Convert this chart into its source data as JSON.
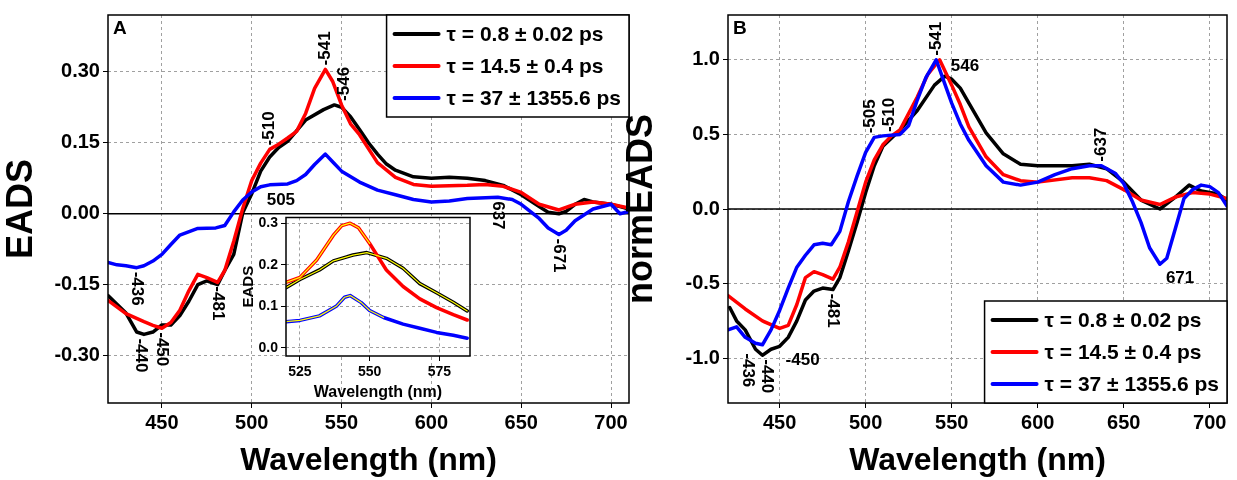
{
  "chart_data": [
    {
      "type": "line",
      "title": "A",
      "xlabel": "Wavelength (nm)",
      "ylabel": "EADS",
      "xlim": [
        420,
        710
      ],
      "xticks": [
        450,
        500,
        550,
        600,
        650,
        700
      ],
      "ylim": [
        -0.4,
        0.42
      ],
      "yticks": [
        {
          "value": 0.3,
          "label": "0.30"
        },
        0.15,
        {
          "value": 0,
          "label": "0.00"
        },
        -0.15,
        {
          "value": -0.3,
          "label": "-0.30"
        }
      ],
      "grid": true,
      "legend": "top right",
      "ref_lines": [
        {
          "axis": "y",
          "value": 0,
          "color": "#000000"
        }
      ],
      "series": [
        {
          "name": "τ = 0.8 ± 0.02 ps",
          "color": "#000000",
          "x": [
            420,
            430,
            436,
            440,
            445,
            450,
            455,
            460,
            465,
            470,
            475,
            481,
            485,
            490,
            495,
            500,
            505,
            510,
            515,
            520,
            530,
            540,
            546,
            550,
            555,
            560,
            565,
            570,
            575,
            580,
            590,
            600,
            610,
            620,
            630,
            640,
            650,
            660,
            665,
            671,
            675,
            680,
            685,
            690,
            700,
            705,
            710
          ],
          "values": [
            -0.173,
            -0.21,
            -0.25,
            -0.255,
            -0.25,
            -0.235,
            -0.235,
            -0.215,
            -0.185,
            -0.15,
            -0.142,
            -0.15,
            -0.12,
            -0.086,
            0.002,
            0.042,
            0.09,
            0.12,
            0.14,
            0.153,
            0.198,
            0.22,
            0.23,
            0.225,
            0.205,
            0.178,
            0.15,
            0.126,
            0.105,
            0.092,
            0.078,
            0.075,
            0.077,
            0.075,
            0.07,
            0.06,
            0.04,
            0.015,
            0.003,
            0.0,
            0.005,
            0.02,
            0.03,
            0.025,
            0.02,
            0.015,
            0.01
          ]
        },
        {
          "name": "τ = 14.5 ± 0.4 ps",
          "color": "#ff0000",
          "x": [
            420,
            430,
            440,
            445,
            450,
            455,
            460,
            465,
            470,
            475,
            481,
            485,
            490,
            495,
            500,
            505,
            510,
            515,
            520,
            525,
            530,
            535,
            541,
            545,
            550,
            555,
            560,
            570,
            580,
            590,
            600,
            620,
            630,
            640,
            650,
            660,
            671,
            680,
            690,
            700,
            710
          ],
          "values": [
            -0.183,
            -0.211,
            -0.228,
            -0.236,
            -0.242,
            -0.23,
            -0.204,
            -0.163,
            -0.128,
            -0.135,
            -0.145,
            -0.12,
            -0.058,
            0.011,
            0.07,
            0.107,
            0.136,
            0.147,
            0.16,
            0.174,
            0.212,
            0.265,
            0.305,
            0.28,
            0.23,
            0.19,
            0.167,
            0.108,
            0.077,
            0.062,
            0.058,
            0.06,
            0.062,
            0.058,
            0.045,
            0.02,
            0.008,
            0.02,
            0.025,
            0.02,
            0.012
          ]
        },
        {
          "name": "τ = 37 ± 1355.6 ps",
          "color": "#0000ff",
          "x": [
            420,
            425,
            430,
            436,
            440,
            445,
            450,
            455,
            460,
            470,
            480,
            485,
            490,
            495,
            500,
            505,
            510,
            520,
            525,
            530,
            535,
            541,
            545,
            550,
            560,
            570,
            580,
            590,
            600,
            610,
            620,
            637,
            645,
            650,
            660,
            665,
            671,
            675,
            680,
            690,
            700,
            705,
            710
          ],
          "values": [
            -0.103,
            -0.108,
            -0.11,
            -0.114,
            -0.11,
            -0.1,
            -0.086,
            -0.065,
            -0.045,
            -0.031,
            -0.03,
            -0.025,
            0.004,
            0.029,
            0.046,
            0.057,
            0.061,
            0.063,
            0.07,
            0.083,
            0.104,
            0.126,
            0.11,
            0.09,
            0.067,
            0.05,
            0.04,
            0.03,
            0.025,
            0.027,
            0.032,
            0.035,
            0.03,
            0.02,
            -0.01,
            -0.03,
            -0.044,
            -0.035,
            -0.015,
            0.01,
            0.02,
            0.0,
            0.005
          ]
        }
      ],
      "annotations": [
        {
          "text": "-436",
          "x": 436,
          "y": -0.114
        },
        {
          "text": "-440",
          "x": 440,
          "y": -0.255
        },
        {
          "text": "-450",
          "x": 450,
          "y": -0.242
        },
        {
          "text": "-481",
          "x": 481,
          "y": -0.145
        },
        {
          "text": "-510",
          "x": 510,
          "y": 0.136
        },
        {
          "text": "505",
          "x": 505,
          "y": 0.057
        },
        {
          "text": "-541",
          "x": 541,
          "y": 0.305
        },
        {
          "text": "-546",
          "x": 546,
          "y": 0.23
        },
        {
          "text": "637",
          "x": 637,
          "y": 0.035
        },
        {
          "text": "-671",
          "x": 671,
          "y": -0.044
        }
      ]
    },
    {
      "type": "line",
      "xlabel": "Wavelength (nm)",
      "ylabel": "EADS",
      "xlim": [
        520,
        586
      ],
      "xticks": [
        525,
        550,
        575
      ],
      "ylim": [
        -0.02,
        0.315
      ],
      "yticks": [
        {
          "value": 0,
          "label": "0.0"
        },
        0.1,
        0.2,
        0.3
      ],
      "grid": true,
      "series": [
        {
          "color": "#000000",
          "x": [
            520,
            525,
            532,
            537,
            544,
            549,
            556,
            562,
            568,
            574,
            580,
            585
          ],
          "values": [
            0.145,
            0.165,
            0.188,
            0.21,
            0.224,
            0.23,
            0.216,
            0.192,
            0.155,
            0.133,
            0.11,
            0.089
          ]
        },
        {
          "color": "#ff0000",
          "x": [
            520,
            525,
            531,
            537,
            540,
            543,
            546,
            550,
            556,
            562,
            568,
            574,
            580,
            585
          ],
          "values": [
            0.158,
            0.17,
            0.212,
            0.272,
            0.295,
            0.301,
            0.29,
            0.252,
            0.188,
            0.148,
            0.118,
            0.097,
            0.08,
            0.067
          ]
        },
        {
          "color": "#0000ff",
          "x": [
            520,
            525,
            532,
            538,
            541,
            543,
            547,
            550,
            555,
            562,
            568,
            574,
            580,
            585
          ],
          "values": [
            0.063,
            0.066,
            0.077,
            0.1,
            0.122,
            0.126,
            0.109,
            0.09,
            0.073,
            0.057,
            0.047,
            0.037,
            0.03,
            0.023
          ]
        },
        {
          "color": "#ffff00",
          "x": [
            520,
            525,
            532,
            537,
            544,
            549,
            556,
            562,
            568,
            574,
            580,
            585
          ],
          "values": [
            0.145,
            0.165,
            0.188,
            0.21,
            0.224,
            0.23,
            0.216,
            0.192,
            0.155,
            0.133,
            0.11,
            0.089
          ]
        },
        {
          "color": "#ffff00",
          "x": [
            520,
            525,
            531,
            537,
            540,
            543,
            546,
            550
          ],
          "values": [
            0.158,
            0.17,
            0.212,
            0.272,
            0.295,
            0.301,
            0.29,
            0.252
          ]
        },
        {
          "color": "#ffff00",
          "x": [
            520,
            525,
            532,
            538,
            541,
            543,
            547,
            550,
            555
          ],
          "values": [
            0.063,
            0.066,
            0.077,
            0.1,
            0.122,
            0.126,
            0.109,
            0.09,
            0.073
          ]
        }
      ]
    },
    {
      "type": "line",
      "title": "B",
      "xlabel": "Wavelength (nm)",
      "ylabel": "normEADS",
      "xlim": [
        420,
        710
      ],
      "xticks": [
        450,
        500,
        550,
        600,
        650,
        700
      ],
      "ylim": [
        -1.3,
        1.3
      ],
      "yticks": [
        {
          "value": 1,
          "label": "1.0"
        },
        0.5,
        {
          "value": 0,
          "label": "0.0"
        },
        -0.5,
        {
          "value": -1,
          "label": "-1.0"
        }
      ],
      "grid": true,
      "legend": "bottom right",
      "ref_lines": [
        {
          "axis": "y",
          "value": 0,
          "color": "#000000"
        }
      ],
      "series": [
        {
          "name": "τ = 0.8 ± 0.02 ps",
          "color": "#000000",
          "x": [
            421,
            425,
            430,
            436,
            440,
            445,
            450,
            455,
            460,
            465,
            470,
            475,
            481,
            485,
            490,
            495,
            500,
            505,
            510,
            520,
            530,
            540,
            546,
            550,
            555,
            560,
            570,
            580,
            590,
            600,
            620,
            630,
            640,
            650,
            660,
            671,
            680,
            688,
            695,
            705,
            710
          ],
          "values": [
            -0.66,
            -0.75,
            -0.81,
            -0.94,
            -0.98,
            -0.94,
            -0.92,
            -0.86,
            -0.75,
            -0.61,
            -0.55,
            -0.53,
            -0.54,
            -0.46,
            -0.28,
            -0.09,
            0.11,
            0.29,
            0.42,
            0.53,
            0.66,
            0.83,
            0.89,
            0.87,
            0.81,
            0.71,
            0.51,
            0.37,
            0.3,
            0.29,
            0.29,
            0.3,
            0.27,
            0.18,
            0.06,
            0.0,
            0.08,
            0.16,
            0.12,
            0.1,
            0.06
          ]
        },
        {
          "name": "τ = 14.5 ± 0.4 ps",
          "color": "#ff0000",
          "x": [
            420,
            430,
            440,
            450,
            455,
            460,
            465,
            470,
            475,
            481,
            485,
            490,
            495,
            500,
            505,
            510,
            515,
            520,
            530,
            536,
            543,
            550,
            555,
            560,
            570,
            580,
            590,
            600,
            620,
            630,
            640,
            650,
            660,
            671,
            680,
            690,
            700,
            710
          ],
          "values": [
            -0.58,
            -0.67,
            -0.75,
            -0.8,
            -0.78,
            -0.64,
            -0.46,
            -0.42,
            -0.44,
            -0.47,
            -0.39,
            -0.22,
            -0.02,
            0.18,
            0.33,
            0.43,
            0.49,
            0.53,
            0.75,
            0.9,
            1.0,
            0.83,
            0.7,
            0.55,
            0.35,
            0.23,
            0.19,
            0.18,
            0.21,
            0.21,
            0.19,
            0.13,
            0.06,
            0.03,
            0.08,
            0.11,
            0.1,
            0.07
          ]
        },
        {
          "name": "τ = 37 ± 1355.6 ps",
          "color": "#0000ff",
          "x": [
            420,
            425,
            430,
            436,
            440,
            445,
            450,
            455,
            460,
            465,
            470,
            475,
            480,
            485,
            490,
            495,
            500,
            505,
            510,
            520,
            525,
            530,
            535,
            541,
            545,
            550,
            555,
            560,
            570,
            580,
            590,
            600,
            610,
            620,
            630,
            637,
            645,
            650,
            655,
            660,
            665,
            671,
            675,
            680,
            685,
            690,
            695,
            700,
            705,
            710
          ],
          "values": [
            -0.81,
            -0.79,
            -0.86,
            -0.9,
            -0.91,
            -0.81,
            -0.68,
            -0.53,
            -0.39,
            -0.31,
            -0.24,
            -0.23,
            -0.24,
            -0.15,
            0.05,
            0.22,
            0.38,
            0.48,
            0.49,
            0.5,
            0.56,
            0.73,
            0.88,
            1.0,
            0.87,
            0.71,
            0.57,
            0.46,
            0.29,
            0.18,
            0.16,
            0.18,
            0.23,
            0.27,
            0.29,
            0.29,
            0.24,
            0.17,
            0.05,
            -0.09,
            -0.26,
            -0.37,
            -0.33,
            -0.13,
            0.07,
            0.13,
            0.16,
            0.15,
            0.11,
            0.02
          ]
        }
      ],
      "annotations": [
        {
          "text": "-436",
          "x": 436,
          "y": -0.94
        },
        {
          "text": "-440",
          "x": 440,
          "y": -0.98
        },
        {
          "text": "-450",
          "x": 450,
          "y": -0.92
        },
        {
          "text": "-481",
          "x": 481,
          "y": -0.54
        },
        {
          "text": "-505",
          "x": 505,
          "y": 0.48
        },
        {
          "text": "-510",
          "x": 510,
          "y": 0.49
        },
        {
          "text": "-541",
          "x": 541,
          "y": 1.0
        },
        {
          "text": "546",
          "x": 546,
          "y": 0.89
        },
        {
          "text": "-637",
          "x": 637,
          "y": 0.29
        },
        {
          "text": "671",
          "x": 671,
          "y": -0.37
        }
      ]
    }
  ]
}
